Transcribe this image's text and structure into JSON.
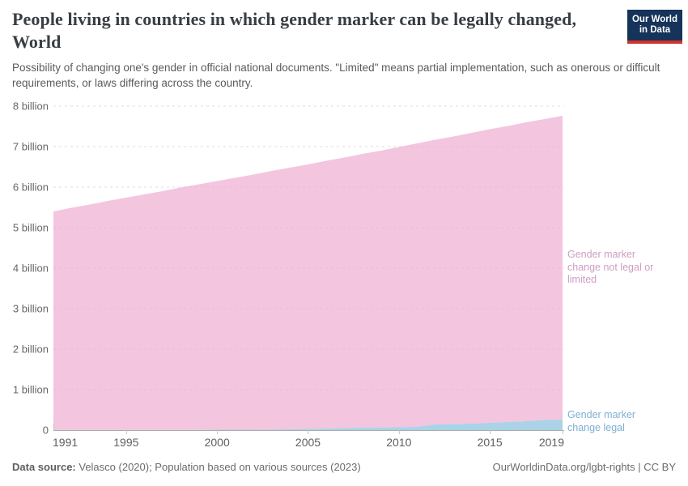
{
  "header": {
    "title": "People living in countries in which gender marker can be legally changed, World",
    "subtitle": "Possibility of changing one's gender in official national documents. \"Limited\" means partial implementation, such as onerous or difficult requirements, or laws differing across the country.",
    "logo": {
      "line1": "Our World",
      "line2": "in Data",
      "bg_color": "#16335a",
      "accent_color": "#d0342c"
    }
  },
  "chart_data": {
    "type": "area",
    "stacked": true,
    "title": "People living in countries in which gender marker can be legally changed, World",
    "xlabel": "",
    "ylabel": "",
    "xlim": [
      1991,
      2019
    ],
    "ylim": [
      0,
      8
    ],
    "grid": "horizontal-dashed",
    "legend_position": "right-annotations",
    "x": [
      1991,
      1992,
      1993,
      1994,
      1995,
      1996,
      1997,
      1998,
      1999,
      2000,
      2001,
      2002,
      2003,
      2004,
      2005,
      2006,
      2007,
      2008,
      2009,
      2010,
      2011,
      2012,
      2013,
      2014,
      2015,
      2016,
      2017,
      2018,
      2019
    ],
    "series": [
      {
        "name": "Gender marker change legal",
        "color": "#8ec4e0",
        "label_color": "#7fb0d3",
        "unit": "billion people",
        "values": [
          0.005,
          0.005,
          0.005,
          0.005,
          0.005,
          0.005,
          0.005,
          0.005,
          0.005,
          0.01,
          0.01,
          0.01,
          0.015,
          0.02,
          0.03,
          0.04,
          0.05,
          0.06,
          0.065,
          0.07,
          0.08,
          0.14,
          0.15,
          0.16,
          0.18,
          0.2,
          0.22,
          0.25,
          0.26
        ]
      },
      {
        "name": "Gender marker change not legal or limited",
        "color": "#efb2d4",
        "label_color": "#cf9dc4",
        "unit": "billion people",
        "values": [
          5.395,
          5.485,
          5.565,
          5.655,
          5.735,
          5.815,
          5.895,
          5.985,
          6.065,
          6.14,
          6.22,
          6.3,
          6.385,
          6.46,
          6.53,
          6.61,
          6.68,
          6.76,
          6.835,
          6.92,
          7.0,
          7.03,
          7.1,
          7.18,
          7.25,
          7.31,
          7.38,
          7.43,
          7.5
        ]
      }
    ],
    "y_ticks": [
      {
        "value": 0,
        "label": "0"
      },
      {
        "value": 1,
        "label": "1 billion"
      },
      {
        "value": 2,
        "label": "2 billion"
      },
      {
        "value": 3,
        "label": "3 billion"
      },
      {
        "value": 4,
        "label": "4 billion"
      },
      {
        "value": 5,
        "label": "5 billion"
      },
      {
        "value": 6,
        "label": "6 billion"
      },
      {
        "value": 7,
        "label": "7 billion"
      },
      {
        "value": 8,
        "label": "8 billion"
      }
    ],
    "x_ticks": [
      1991,
      1995,
      2000,
      2005,
      2010,
      2015,
      2019
    ],
    "colors": {
      "grid": "#dcdcdc",
      "axis": "#ababab",
      "tick": "#c2c2c2",
      "y_label": "#666666",
      "x_label": "#5f5f5f"
    },
    "area_opacity": 0.75
  },
  "footer": {
    "source_label": "Data source:",
    "source_text": " Velasco (2020); Population based on various sources (2023)",
    "credit": "OurWorldinData.org/lgbt-rights | CC BY"
  }
}
